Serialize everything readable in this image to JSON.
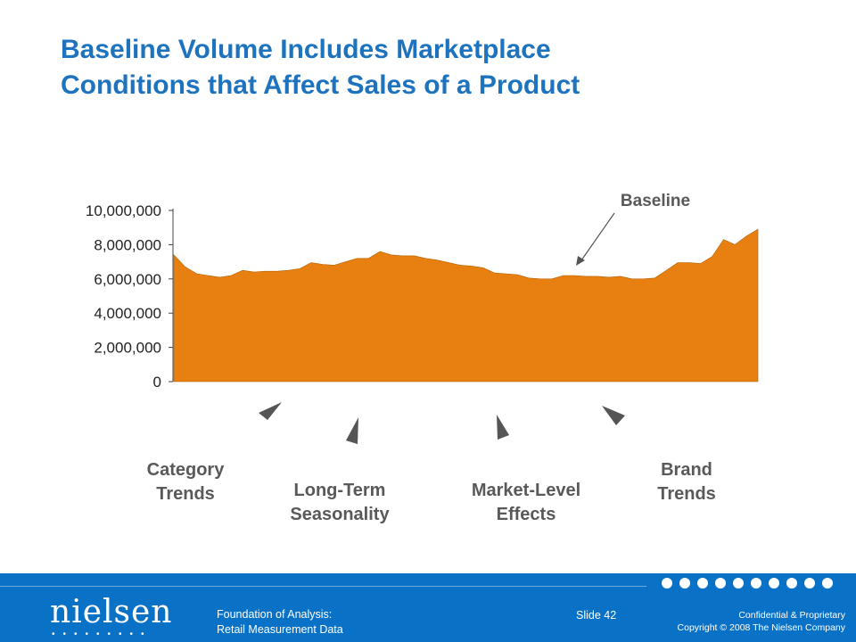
{
  "title": {
    "line1": "Baseline Volume Includes Marketplace",
    "line2": "Conditions that Affect Sales of a Product"
  },
  "chart_data": {
    "type": "area",
    "title": "",
    "xlabel": "",
    "ylabel": "",
    "ylim": [
      0,
      10000000
    ],
    "yticks": [
      0,
      2000000,
      4000000,
      6000000,
      8000000,
      10000000
    ],
    "ytick_labels": [
      "0",
      "2,000,000",
      "4,000,000",
      "6,000,000",
      "8,000,000",
      "10,000,000"
    ],
    "grid": false,
    "color": "#e88011",
    "annotation": "Baseline",
    "x": [
      1,
      2,
      3,
      4,
      5,
      6,
      7,
      8,
      9,
      10,
      11,
      12,
      13,
      14,
      15,
      16,
      17,
      18,
      19,
      20,
      21,
      22,
      23,
      24,
      25,
      26,
      27,
      28,
      29,
      30,
      31,
      32,
      33,
      34,
      35,
      36,
      37,
      38,
      39,
      40,
      41,
      42,
      43,
      44,
      45,
      46,
      47,
      48,
      49,
      50,
      51,
      52
    ],
    "series": [
      {
        "values": [
          7400000,
          6700000,
          6300000,
          6200000,
          6100000,
          6200000,
          6500000,
          6400000,
          6450000,
          6450000,
          6500000,
          6600000,
          6950000,
          6850000,
          6800000,
          7000000,
          7200000,
          7200000,
          7600000,
          7400000,
          7350000,
          7350000,
          7200000,
          7100000,
          6950000,
          6800000,
          6750000,
          6650000,
          6350000,
          6300000,
          6250000,
          6050000,
          6000000,
          6000000,
          6200000,
          6200000,
          6150000,
          6150000,
          6100000,
          6150000,
          6000000,
          6000000,
          6050000,
          6500000,
          6950000,
          6950000,
          6900000,
          7300000,
          8300000,
          8000000,
          8500000,
          8900000
        ]
      }
    ]
  },
  "drivers": {
    "category": {
      "line1": "Category",
      "line2": "Trends"
    },
    "seasonality": {
      "line1": "Long-Term",
      "line2": "Seasonality"
    },
    "market": {
      "line1": "Market-Level",
      "line2": "Effects"
    },
    "brand": {
      "line1": "Brand",
      "line2": "Trends"
    }
  },
  "footer": {
    "logo": "nielsen",
    "logo_dots": "•••••••••",
    "course_line1": "Foundation of Analysis:",
    "course_line2": "Retail Measurement Data",
    "slide_label": "Slide",
    "slide_number": "42",
    "confidential": "Confidential & Proprietary",
    "copyright": "Copyright © 2008 The Nielsen Company"
  }
}
